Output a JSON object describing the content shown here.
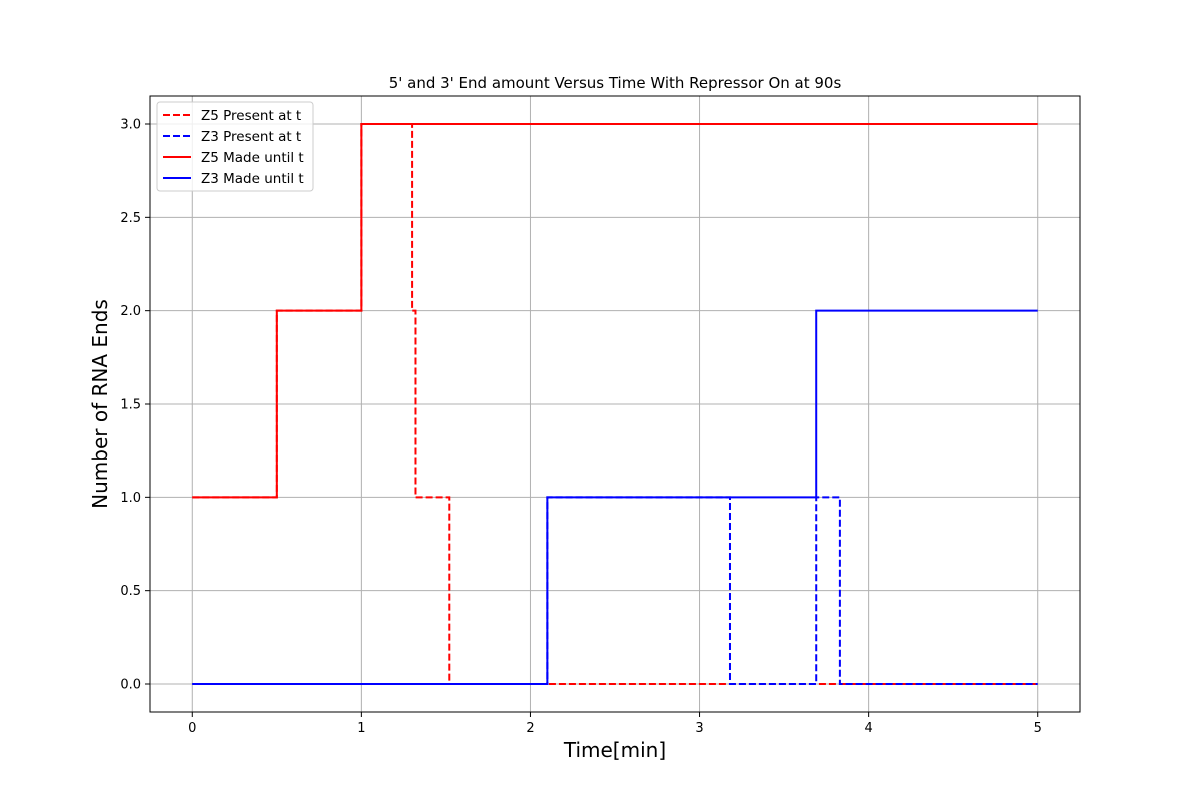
{
  "chart_data": {
    "type": "line",
    "title": "5' and 3' End amount Versus Time With Repressor On at 90s",
    "xlabel": "Time[min]",
    "ylabel": "Number of RNA Ends",
    "xlim": [
      -0.25,
      5.25
    ],
    "ylim": [
      -0.15,
      3.15
    ],
    "xticks": [
      0,
      1,
      2,
      3,
      4,
      5
    ],
    "xtick_labels": [
      "0",
      "1",
      "2",
      "3",
      "4",
      "5"
    ],
    "yticks": [
      0.0,
      0.5,
      1.0,
      1.5,
      2.0,
      2.5,
      3.0
    ],
    "ytick_labels": [
      "0.0",
      "0.5",
      "1.0",
      "1.5",
      "2.0",
      "2.5",
      "3.0"
    ],
    "grid": true,
    "legend_position": "top-left",
    "series": [
      {
        "name": "Z5 Present at t",
        "color": "#ff0000",
        "linestyle": "dashed",
        "step": true,
        "x": [
          0,
          0.5,
          1.0,
          1.3,
          1.32,
          1.52,
          5.0
        ],
        "y": [
          1,
          2,
          3,
          2,
          1,
          0,
          0
        ]
      },
      {
        "name": "Z3 Present at t",
        "color": "#0000ff",
        "linestyle": "dashed",
        "step": true,
        "x": [
          0,
          2.1,
          3.18,
          3.69,
          3.83,
          5.0
        ],
        "y": [
          0,
          1,
          0,
          1,
          0,
          0
        ]
      },
      {
        "name": "Z5 Made until t",
        "color": "#ff0000",
        "linestyle": "solid",
        "step": true,
        "x": [
          0,
          0.5,
          1.0,
          5.0
        ],
        "y": [
          1,
          2,
          3,
          3
        ]
      },
      {
        "name": "Z3 Made until t",
        "color": "#0000ff",
        "linestyle": "solid",
        "step": true,
        "x": [
          0,
          2.1,
          3.69,
          5.0
        ],
        "y": [
          0,
          1,
          2,
          2
        ]
      }
    ]
  }
}
